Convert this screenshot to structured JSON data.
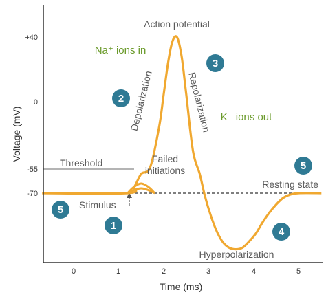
{
  "chart_data": {
    "type": "line",
    "xlabel": "Time (ms)",
    "ylabel": "Voltage (mV)",
    "x_ticks": [
      "0",
      "1",
      "2",
      "3",
      "4",
      "5"
    ],
    "y_ticks": [
      "+40",
      "0",
      "-55",
      "-70"
    ],
    "xlim": [
      -0.7,
      5.5
    ],
    "series": [
      {
        "role": "action-potential",
        "x": [
          -0.7,
          1.2,
          1.35,
          1.5,
          1.7,
          1.9,
          2.0,
          2.1,
          2.2,
          2.3,
          2.4,
          2.5,
          2.65,
          2.8,
          2.9,
          3.0,
          3.15,
          3.3,
          3.45,
          3.6,
          3.75,
          3.9,
          4.05,
          4.2,
          4.35,
          4.5,
          4.65,
          4.8,
          5.0,
          5.5
        ],
        "y": [
          -70,
          -70,
          -66,
          -58,
          -40,
          -15,
          5,
          25,
          38,
          40,
          28,
          5,
          -30,
          -58,
          -70,
          -80,
          -92,
          -100,
          -104,
          -105,
          -104,
          -100,
          -95,
          -88,
          -82,
          -77,
          -73,
          -71,
          -70,
          -70
        ]
      },
      {
        "role": "failed-initiation-1",
        "x": [
          1.2,
          1.3,
          1.4,
          1.5,
          1.6,
          1.7,
          1.8
        ],
        "y": [
          -70,
          -67,
          -65,
          -64,
          -65,
          -67,
          -70
        ]
      },
      {
        "role": "failed-initiation-2",
        "x": [
          1.2,
          1.35,
          1.5,
          1.65,
          1.8
        ],
        "y": [
          -70,
          -68,
          -67,
          -68,
          -70
        ]
      }
    ],
    "resting_potential": -70,
    "threshold": -55,
    "stimulus_time": 1.2,
    "annotations": {
      "action_potential": "Action potential",
      "na_ions_in": "Na⁺ ions in",
      "k_ions_out": "K⁺ ions out",
      "depolarization": "Depolarization",
      "repolarization": "Repolarization",
      "threshold": "Threshold",
      "failed_initiations_line1": "Failed",
      "failed_initiations_line2": "initiations",
      "resting_state": "Resting state",
      "stimulus": "Stimulus",
      "hyperpolarization": "Hyperpolarization"
    },
    "stage_badges": [
      "1",
      "2",
      "3",
      "4",
      "5",
      "5"
    ],
    "colors": {
      "curve": "#f0a830",
      "resting_dash": "#555555",
      "threshold_line": "#888888",
      "axis": "#333333",
      "badge": "#2f7a94",
      "green_text": "#6a9a2a",
      "gray_text": "#5a5a5a"
    }
  }
}
